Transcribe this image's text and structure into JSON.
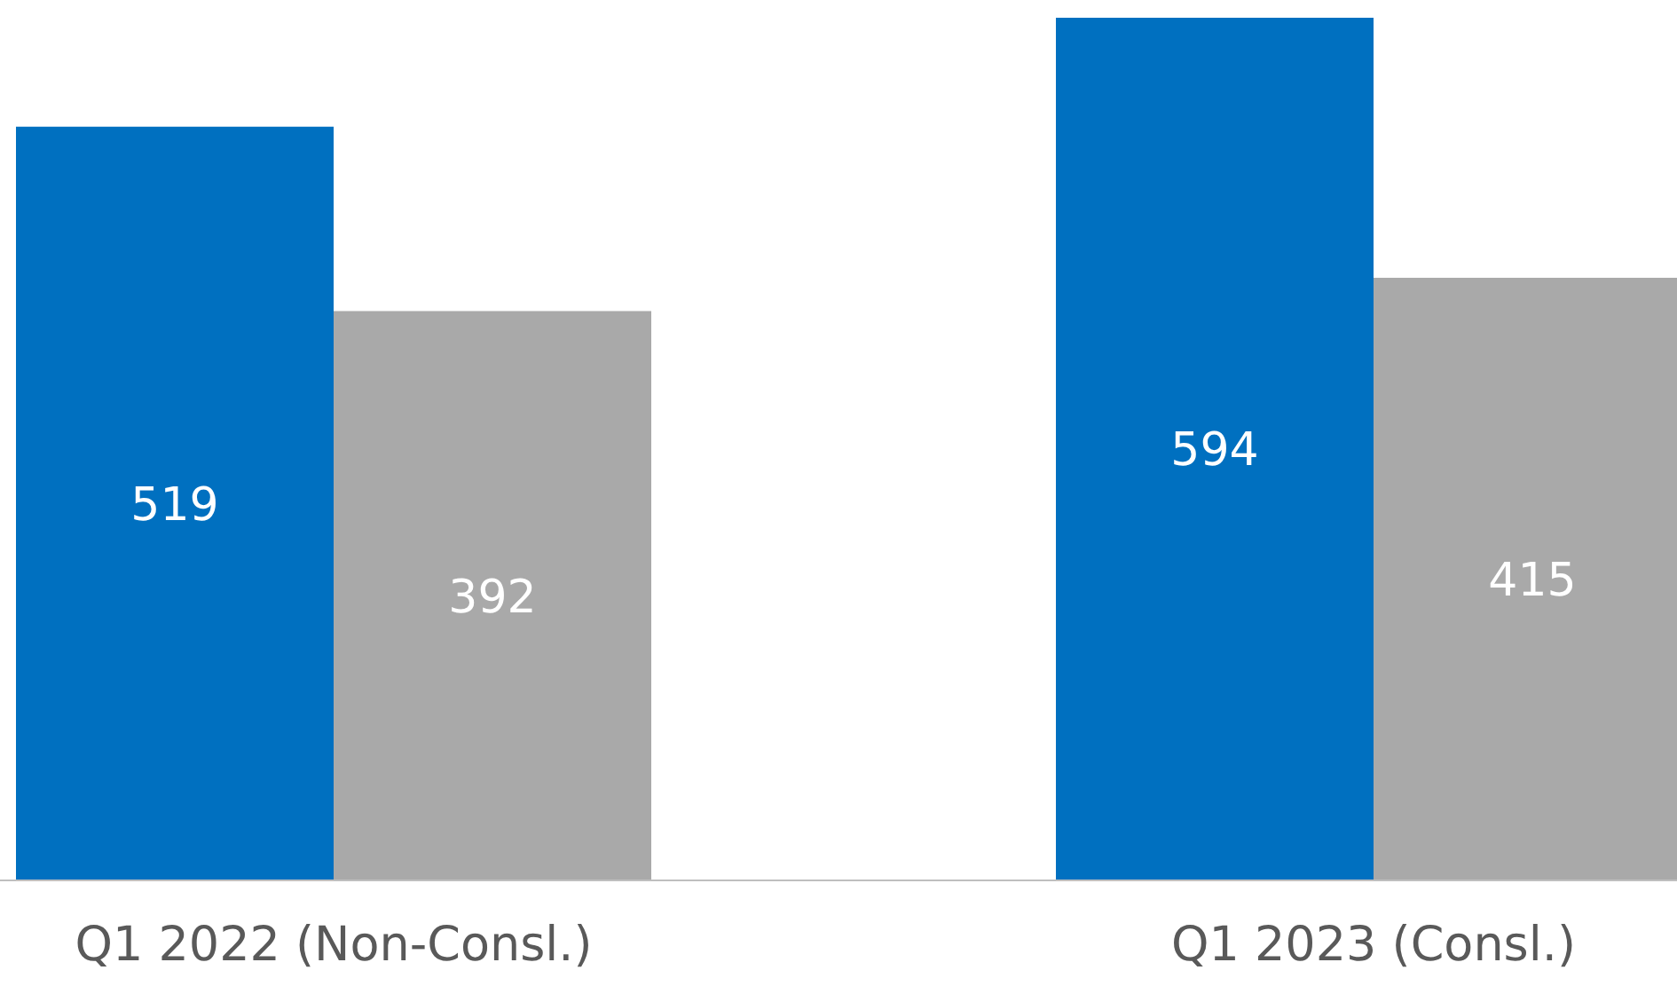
{
  "chart_data": {
    "type": "bar",
    "categories": [
      "Q1 2022 (Non-Consl.)",
      "Q1 2023 (Consl.)"
    ],
    "series": [
      {
        "color": "#0070c0",
        "values": [
          519,
          594
        ]
      },
      {
        "color": "#a9a9a9",
        "values": [
          392,
          415
        ]
      }
    ],
    "ylim": [
      0,
      594
    ],
    "data_labels": true,
    "grid": false,
    "legend": false
  }
}
